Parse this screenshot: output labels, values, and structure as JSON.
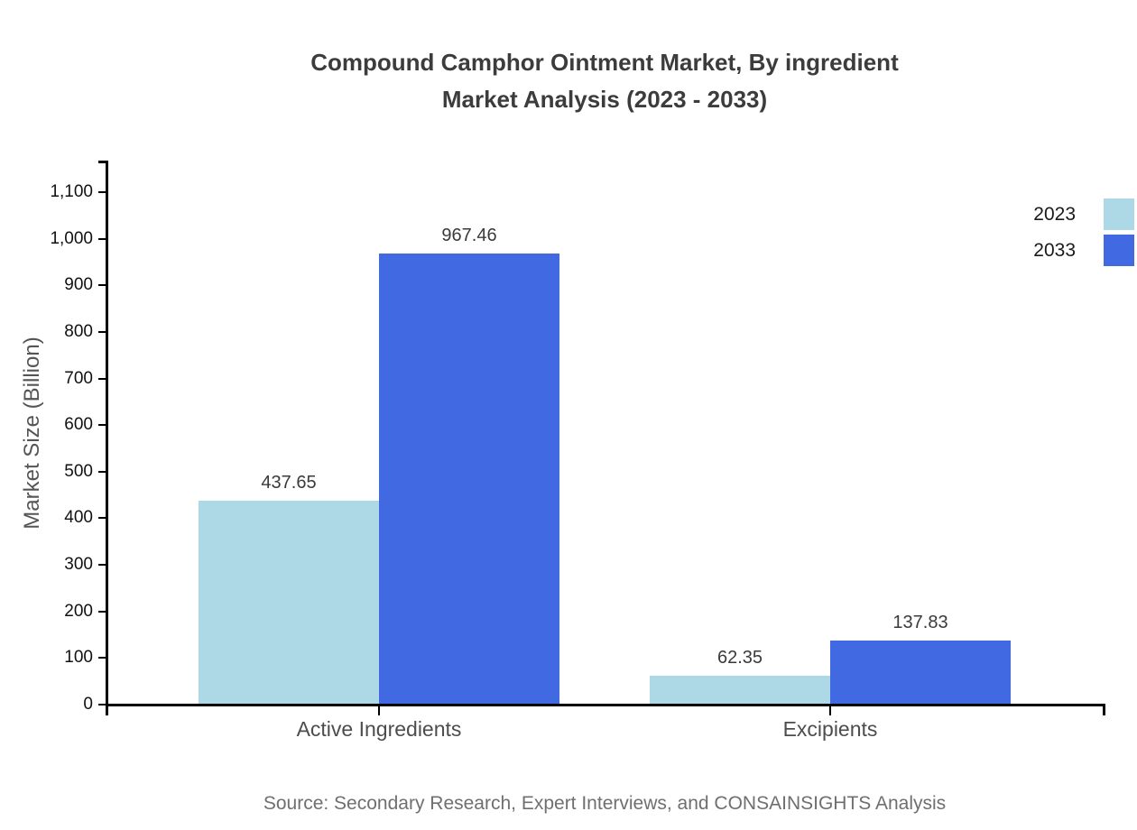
{
  "title": {
    "line1": "Compound Camphor Ointment Market, By ingredient",
    "line2": "Market Analysis (2023 - 2033)"
  },
  "source_note": "Source: Secondary Research, Expert Interviews, and CONSAINSIGHTS Analysis",
  "chart_data": {
    "type": "bar",
    "title": "Compound Camphor Ointment Market, By ingredient Market Analysis (2023 - 2033)",
    "categories": [
      "Active Ingredients",
      "Excipients"
    ],
    "series": [
      {
        "name": "2023",
        "color": "#ADD8E6",
        "values": [
          437.65,
          62.35
        ]
      },
      {
        "name": "2033",
        "color": "#4169E1",
        "values": [
          967.46,
          137.83
        ]
      }
    ],
    "xlabel": "",
    "ylabel": "Market Size (Billion)",
    "ylim": [
      0,
      1168
    ],
    "yticks": [
      0,
      100,
      200,
      300,
      400,
      500,
      600,
      700,
      800,
      900,
      1000,
      1100
    ],
    "grid": false,
    "value_labels": true,
    "legend_position": "top-right"
  },
  "colors": {
    "axis": "#000000",
    "series_2023": "#ADD8E6",
    "series_2033": "#4169E1",
    "title_text": "#3c3c3c",
    "tick_text": "#111111",
    "category_text": "#4d4d4d",
    "muted_text": "#6f6f6f"
  }
}
